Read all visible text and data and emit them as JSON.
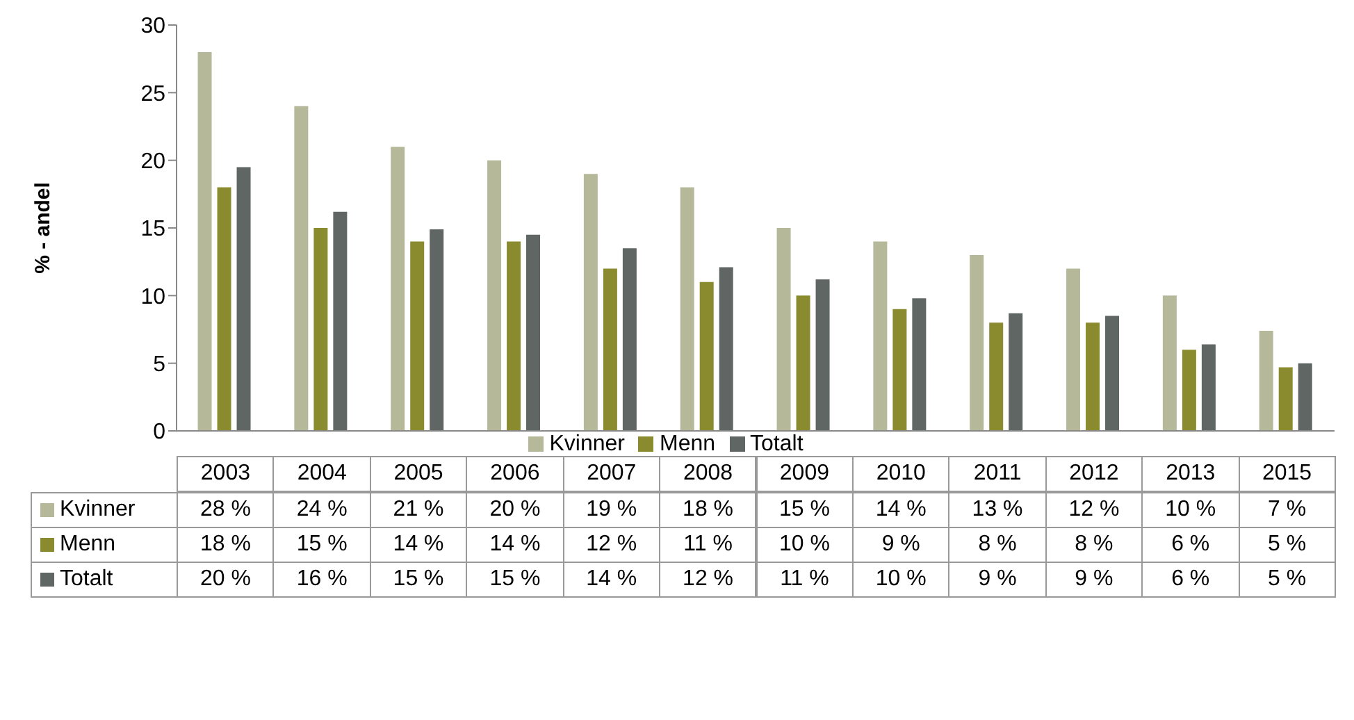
{
  "chart_data": {
    "type": "bar",
    "ylabel": "% - andel",
    "categories": [
      "2003",
      "2004",
      "2005",
      "2006",
      "2007",
      "2008",
      "2009",
      "2010",
      "2011",
      "2012",
      "2013",
      "2015"
    ],
    "series": [
      {
        "name": "Kvinner",
        "color": "#b5b99a",
        "values": [
          28,
          24,
          21,
          20,
          19,
          18,
          15,
          14,
          13,
          12,
          10,
          7.4
        ],
        "value_labels": [
          "28 %",
          "24 %",
          "21 %",
          "20 %",
          "19 %",
          "18 %",
          "15 %",
          "14 %",
          "13 %",
          "12 %",
          "10 %",
          "7 %"
        ]
      },
      {
        "name": "Menn",
        "color": "#8a8a2e",
        "values": [
          18,
          15,
          14,
          14,
          12,
          11,
          10,
          9,
          8,
          8,
          6,
          4.7
        ],
        "value_labels": [
          "18 %",
          "15 %",
          "14 %",
          "14 %",
          "12 %",
          "11 %",
          "10 %",
          "9 %",
          "8 %",
          "8 %",
          "6 %",
          "5 %"
        ]
      },
      {
        "name": "Totalt",
        "color": "#5f6664",
        "values": [
          19.5,
          16.2,
          14.9,
          14.5,
          13.5,
          12.1,
          11.2,
          9.8,
          8.7,
          8.5,
          6.4,
          5.0
        ],
        "value_labels": [
          "20 %",
          "16 %",
          "15 %",
          "15 %",
          "14 %",
          "12 %",
          "11 %",
          "10 %",
          "9 %",
          "9 %",
          "6 %",
          "5 %"
        ]
      }
    ],
    "ylim": [
      0,
      30
    ],
    "yticks": [
      0,
      5,
      10,
      15,
      20,
      25,
      30
    ],
    "grid": false,
    "legend": "bottom"
  }
}
